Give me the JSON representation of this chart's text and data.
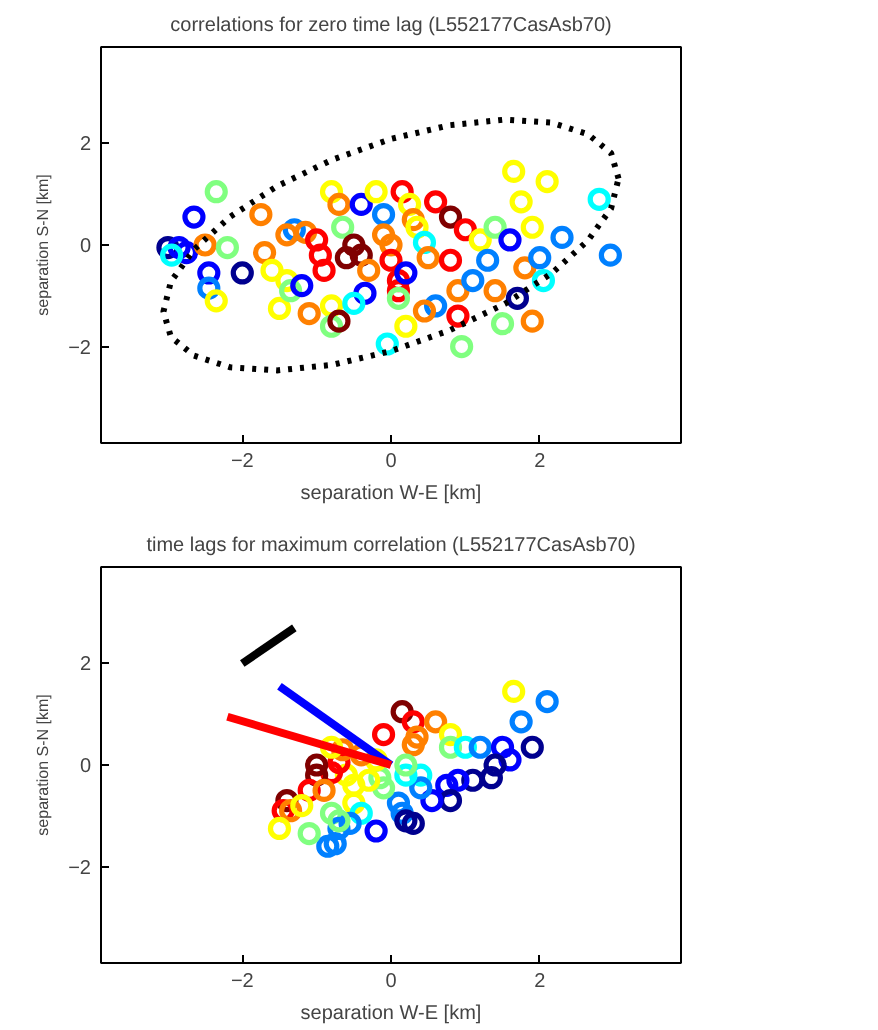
{
  "chart_data": [
    {
      "type": "scatter",
      "title": "correlations for zero time lag (L552177CasAsb70)",
      "xlabel": "separation W-E [km]",
      "ylabel": "separation S-N [km]",
      "xlim": [
        -3.9,
        3.9
      ],
      "ylim": [
        -3.9,
        3.9
      ],
      "xticks": [
        -2,
        0,
        2
      ],
      "yticks": [
        -2,
        0,
        2
      ],
      "grid": false,
      "series": [
        {
          "marker": "circle",
          "x": [
            -3.0,
            -2.85,
            -2.75,
            -2.95,
            -2.65,
            -2.5,
            -2.45,
            -2.45,
            -2.35,
            -2.35,
            -2.2,
            -2.0,
            -1.75,
            -1.7,
            -1.6,
            -1.5,
            -1.4,
            -1.3,
            -1.4,
            -1.35,
            -1.2,
            -1.15,
            -1.1,
            -1.0,
            -0.95,
            -0.9,
            -0.8,
            -0.8,
            -0.7,
            -0.8,
            -0.7,
            -0.65,
            -0.4,
            -0.6,
            -0.5,
            -0.4,
            -0.3,
            -0.35,
            -0.5,
            -0.2,
            -0.1,
            -0.1,
            0.0,
            0.0,
            0.1,
            0.1,
            0.15,
            0.25,
            0.3,
            0.35,
            0.2,
            0.1,
            0.2,
            -0.05,
            0.45,
            0.5,
            0.6,
            0.6,
            0.45,
            0.8,
            0.8,
            0.9,
            0.9,
            0.95,
            1.0,
            1.1,
            1.2,
            1.3,
            1.4,
            1.4,
            1.5,
            1.6,
            1.65,
            1.75,
            1.7,
            1.8,
            1.9,
            1.9,
            2.0,
            2.1,
            2.05,
            2.3,
            2.8,
            2.95
          ],
          "values": [
            -0.05,
            -0.05,
            -0.15,
            -0.2,
            0.55,
            0.0,
            -0.55,
            -0.85,
            -1.1,
            1.05,
            -0.05,
            -0.55,
            0.6,
            -0.15,
            -0.5,
            -1.25,
            -0.7,
            0.3,
            0.2,
            -0.9,
            -0.8,
            0.25,
            -1.35,
            0.1,
            -0.2,
            -0.5,
            -1.2,
            -1.6,
            -1.5,
            1.05,
            0.8,
            0.35,
            0.8,
            -0.25,
            0.0,
            -0.2,
            -0.5,
            -0.95,
            -1.15,
            1.05,
            0.6,
            0.2,
            0.0,
            -0.3,
            -0.7,
            -0.9,
            1.05,
            0.8,
            0.5,
            0.35,
            -0.55,
            -1.05,
            -1.6,
            -1.95,
            0.05,
            -0.25,
            0.85,
            -1.2,
            -1.3,
            0.55,
            -0.3,
            -0.9,
            -1.4,
            -2.0,
            0.3,
            -0.7,
            0.1,
            -0.3,
            -0.9,
            0.35,
            -1.55,
            0.1,
            1.45,
            0.85,
            -1.05,
            -0.45,
            0.35,
            -1.5,
            -0.25,
            1.25,
            -0.7,
            0.15,
            0.9,
            -0.2
          ],
          "colors": [
            "#00008f",
            "#0000ff",
            "#0000ff",
            "#00ffff",
            "#0000ff",
            "#ff8000",
            "#0000ff",
            "#0080ff",
            "#ffff00",
            "#80ff80",
            "#80ff80",
            "#00008f",
            "#ff8000",
            "#ff8000",
            "#ffff00",
            "#ffff00",
            "#ffff00",
            "#0080ff",
            "#ff8000",
            "#80ff80",
            "#0000ff",
            "#ff8000",
            "#ff8000",
            "#ff0000",
            "#ff0000",
            "#ff0000",
            "#ffff00",
            "#80ff80",
            "#800000",
            "#ffff00",
            "#ff8000",
            "#80ff80",
            "#0000ff",
            "#800000",
            "#800000",
            "#800000",
            "#ff8000",
            "#0000ff",
            "#00ffff",
            "#ffff00",
            "#0080ff",
            "#ff8000",
            "#ff8000",
            "#ff0000",
            "#ff0000",
            "#ff0000",
            "#ff0000",
            "#ffff00",
            "#ff8000",
            "#ffff00",
            "#0000ff",
            "#80ff80",
            "#ffff00",
            "#00ffff",
            "#00ffff",
            "#ff8000",
            "#ff0000",
            "#0080ff",
            "#ff8000",
            "#800000",
            "#ff0000",
            "#ff8000",
            "#ff0000",
            "#80ff80",
            "#ff0000",
            "#0080ff",
            "#ffff00",
            "#0080ff",
            "#ff8000",
            "#80ff80",
            "#80ff80",
            "#0000ff",
            "#ffff00",
            "#ffff00",
            "#00008f",
            "#ff8000",
            "#ffff00",
            "#ff8000",
            "#0080ff",
            "#ffff00",
            "#00ffff",
            "#0080ff",
            "#00ffff",
            "#0080ff"
          ]
        },
        {
          "type": "line",
          "color": "#000000",
          "line_style": "dotted",
          "x": [
            3.06,
            2.96,
            2.65,
            2.16,
            1.53,
            0.79,
            0.0,
            -0.79,
            -1.53,
            -2.16,
            -2.65,
            -2.96,
            -3.06,
            -2.96,
            -2.65,
            -2.16,
            -1.53,
            -0.79,
            0.0,
            0.79,
            1.53,
            2.16,
            2.65,
            2.96,
            3.05
          ],
          "values": [
            1.31,
            1.81,
            2.18,
            2.41,
            2.47,
            2.36,
            2.09,
            1.68,
            1.16,
            0.56,
            -0.09,
            -0.72,
            -1.31,
            -1.81,
            -2.18,
            -2.41,
            -2.47,
            -2.36,
            -2.09,
            -1.68,
            -1.16,
            -0.56,
            0.09,
            0.72,
            1.25
          ]
        }
      ]
    },
    {
      "type": "scatter",
      "title": "time lags for maximum correlation (L552177CasAsb70)",
      "xlabel": "separation W-E [km]",
      "ylabel": "separation S-N [km]",
      "xlim": [
        -3.9,
        3.9
      ],
      "ylim": [
        -3.9,
        3.9
      ],
      "xticks": [
        -2,
        0,
        2
      ],
      "yticks": [
        -2,
        0,
        2
      ],
      "grid": false,
      "series": [
        {
          "marker": "circle",
          "x": [
            1.65,
            2.1,
            1.75,
            0.15,
            0.3,
            0.6,
            -0.1,
            0.35,
            0.3,
            0.8,
            0.8,
            1.0,
            1.2,
            1.5,
            1.9,
            1.6,
            1.4,
            1.35,
            1.1,
            0.9,
            0.75,
            0.8,
            0.55,
            0.4,
            0.4,
            0.2,
            0.1,
            0.15,
            0.3,
            0.2,
            -0.1,
            -0.15,
            0.2,
            -0.3,
            -0.5,
            -0.6,
            -0.2,
            -0.4,
            -0.7,
            -0.8,
            -1.0,
            -1.0,
            -0.65,
            -0.8,
            -1.1,
            -0.9,
            -1.4,
            -1.45,
            -1.35,
            -1.2,
            -0.5,
            -0.8,
            -0.4,
            -0.55,
            -0.7,
            -0.2,
            -0.75,
            -0.85,
            -1.1,
            -1.5,
            -0.7
          ],
          "values": [
            1.45,
            1.25,
            0.85,
            1.05,
            0.85,
            0.85,
            0.6,
            0.55,
            0.4,
            0.6,
            0.35,
            0.35,
            0.35,
            0.35,
            0.35,
            0.1,
            0.0,
            -0.25,
            -0.3,
            -0.3,
            -0.4,
            -0.7,
            -0.7,
            -0.2,
            -0.45,
            -0.2,
            -0.75,
            -0.95,
            -1.15,
            -1.1,
            -0.45,
            -0.25,
            0.0,
            -0.3,
            -0.4,
            -0.2,
            0.1,
            0.2,
            0.05,
            -0.15,
            0.0,
            -0.2,
            0.3,
            0.35,
            -0.5,
            -0.5,
            -0.7,
            -0.9,
            -0.9,
            -0.8,
            -0.75,
            -0.95,
            -0.95,
            -1.15,
            -1.25,
            -1.3,
            -1.55,
            -1.6,
            -1.35,
            -1.25,
            -1.1
          ],
          "colors": [
            "#ffff00",
            "#0080ff",
            "#0080ff",
            "#800000",
            "#ff0000",
            "#ff8000",
            "#ff0000",
            "#ff8000",
            "#ff8000",
            "#ffff00",
            "#80ff80",
            "#00ffff",
            "#0080ff",
            "#0000ff",
            "#00008f",
            "#0000ff",
            "#00008f",
            "#00008f",
            "#00008f",
            "#0000ff",
            "#0000ff",
            "#00008f",
            "#0000ff",
            "#00ffff",
            "#0080ff",
            "#00ffff",
            "#0080ff",
            "#0080ff",
            "#00008f",
            "#00008f",
            "#80ff80",
            "#80ff80",
            "#80ff80",
            "#ffff00",
            "#ffff00",
            "#ffff00",
            "#ffff00",
            "#ff8000",
            "#ff0000",
            "#ff0000",
            "#800000",
            "#800000",
            "#ff8000",
            "#ffff00",
            "#ff0000",
            "#ff8000",
            "#800000",
            "#ff0000",
            "#ff8000",
            "#ffff00",
            "#ffff00",
            "#80ff80",
            "#00ffff",
            "#0080ff",
            "#0080ff",
            "#0000ff",
            "#0080ff",
            "#0080ff",
            "#80ff80",
            "#ffff00",
            "#80ff80"
          ]
        },
        {
          "type": "line",
          "color": "#000000",
          "line_style": "solid",
          "x": [
            -2.0,
            -1.3
          ],
          "values": [
            2.0,
            2.7
          ]
        },
        {
          "type": "line",
          "color": "#0000ff",
          "line_style": "solid",
          "x": [
            -1.5,
            0.0
          ],
          "values": [
            1.55,
            0.0
          ]
        },
        {
          "type": "line",
          "color": "#ff0000",
          "line_style": "solid",
          "x": [
            -2.2,
            0.0
          ],
          "values": [
            0.95,
            0.0
          ]
        }
      ]
    }
  ]
}
